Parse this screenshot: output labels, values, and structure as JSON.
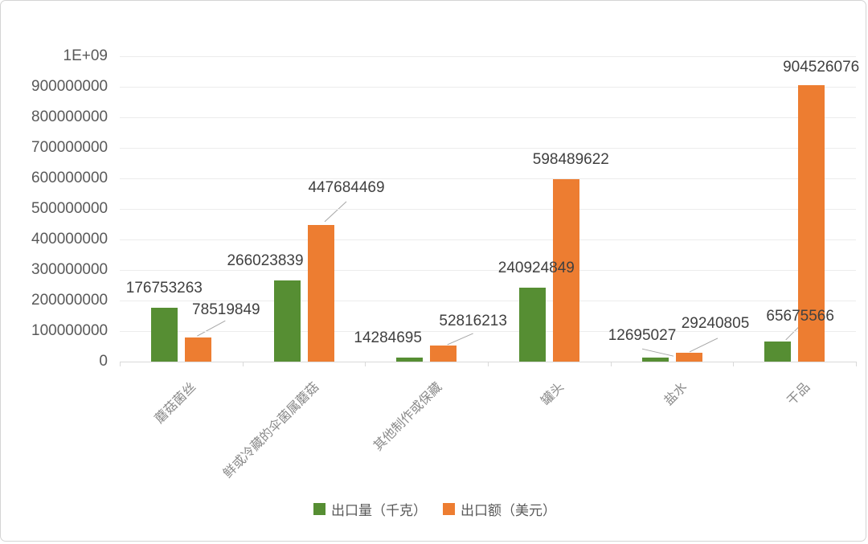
{
  "chart_data": {
    "type": "bar",
    "title": "",
    "categories": [
      "蘑菇菌丝",
      "鲜或冷藏的伞菌属蘑菇",
      "其他制作或保藏",
      "罐头",
      "盐水",
      "干品"
    ],
    "series": [
      {
        "name": "出口量（千克）",
        "color": "#568E33",
        "values": [
          176753263,
          266023839,
          14284695,
          240924849,
          12695027,
          65675566
        ]
      },
      {
        "name": "出口额（美元）",
        "color": "#ED7D31",
        "values": [
          78519849,
          447684469,
          52816213,
          598489622,
          29240805,
          904526076
        ]
      }
    ],
    "y_ticks": [
      "0",
      "100000000",
      "200000000",
      "300000000",
      "400000000",
      "500000000",
      "600000000",
      "700000000",
      "800000000",
      "900000000",
      "1E+09"
    ],
    "ylim": [
      0,
      1000000000
    ],
    "grid": true,
    "data_labels": true,
    "legend_position": "bottom",
    "xlabel": "",
    "ylabel": ""
  },
  "colors": {
    "grid": "#ececec",
    "axis": "#d9d9d9",
    "leader_line": "#a6a6a6",
    "y_label_text": "#595959",
    "data_label_text": "#404040",
    "category_text": "#8a8a8a",
    "legend_text": "#595959",
    "card_border": "#d4d4d4",
    "background": "#ffffff"
  }
}
